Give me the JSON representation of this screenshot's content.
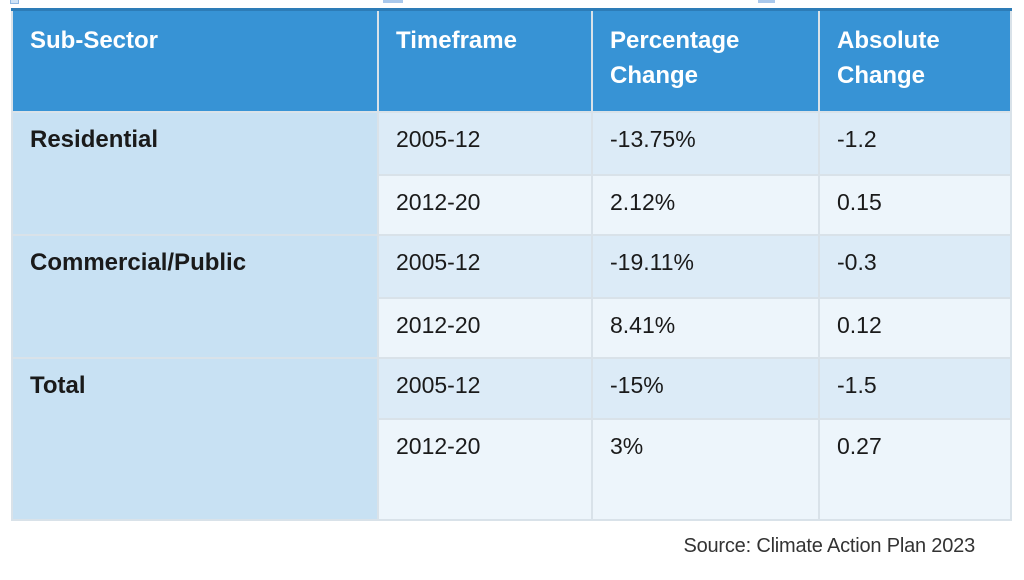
{
  "colors": {
    "header_bg": "#3793d5",
    "header_top_edge": "#2d7cb7",
    "subsector_cell_bg": "#c8e1f3",
    "row_odd_bg": "#dcebf7",
    "row_even_bg": "#edf5fb",
    "cell_border": "#d9e2e9",
    "body_text": "#1a1a1a",
    "header_text": "#ffffff",
    "source_text": "#333333"
  },
  "table": {
    "headers": [
      "Sub-Sector",
      "Timeframe",
      "Percentage Change",
      "Absolute Change"
    ],
    "groups": [
      {
        "label": "Residential",
        "rows": [
          {
            "timeframe": "2005-12",
            "percentage_change": "-13.75%",
            "absolute_change": "-1.2"
          },
          {
            "timeframe": "2012-20",
            "percentage_change": "2.12%",
            "absolute_change": "0.15"
          }
        ]
      },
      {
        "label": "Commercial/Public",
        "rows": [
          {
            "timeframe": "2005-12",
            "percentage_change": "-19.11%",
            "absolute_change": "-0.3"
          },
          {
            "timeframe": "2012-20",
            "percentage_change": "8.41%",
            "absolute_change": "0.12"
          }
        ]
      },
      {
        "label": "Total",
        "rows": [
          {
            "timeframe": "2005-12",
            "percentage_change": "-15%",
            "absolute_change": "-1.5"
          },
          {
            "timeframe": "2012-20",
            "percentage_change": "3%",
            "absolute_change": "0.27"
          }
        ]
      }
    ]
  },
  "footer": {
    "source": "Source: Climate Action Plan 2023"
  },
  "chart_data": {
    "type": "table",
    "columns": [
      "Sub-Sector",
      "Timeframe",
      "Percentage Change",
      "Absolute Change"
    ],
    "rows": [
      [
        "Residential",
        "2005-12",
        -13.75,
        -1.2
      ],
      [
        "Residential",
        "2012-20",
        2.12,
        0.15
      ],
      [
        "Commercial/Public",
        "2005-12",
        -19.11,
        -0.3
      ],
      [
        "Commercial/Public",
        "2012-20",
        8.41,
        0.12
      ],
      [
        "Total",
        "2005-12",
        -15,
        -1.5
      ],
      [
        "Total",
        "2012-20",
        3,
        0.27
      ]
    ],
    "source": "Source: Climate Action Plan 2023"
  }
}
